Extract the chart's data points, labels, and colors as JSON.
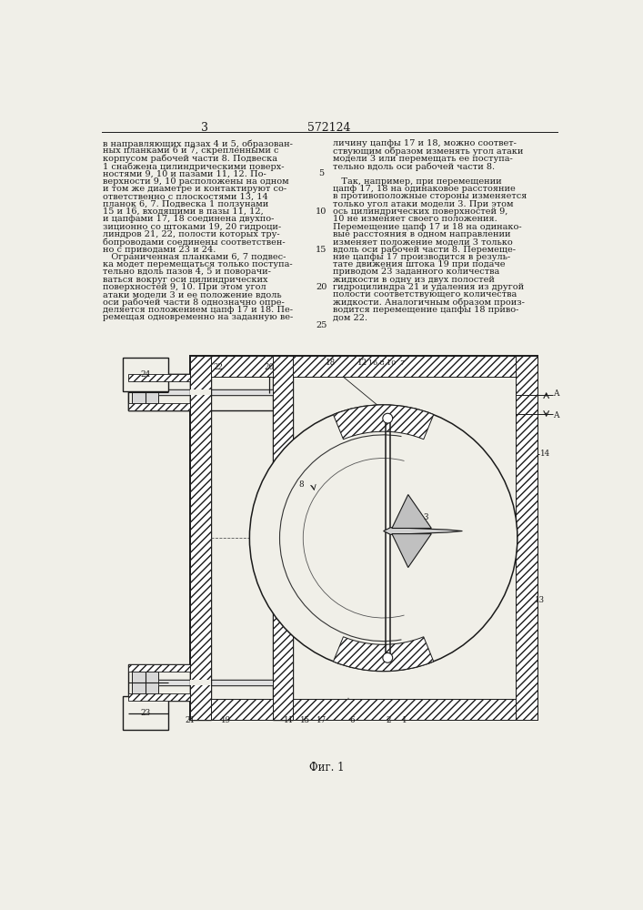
{
  "page_number_left": "3",
  "patent_number": "572124",
  "text_col1": [
    "в направляющих пазах 4 и 5, образован-",
    "ных планками 6 и 7, скрепленными с",
    "корпусом рабочей части 8. Подвеска",
    "1 снабжена цилиндрическими поверх-",
    "ностями 9, 10 и пазами 11, 12. По-",
    "верхности 9, 10 расположены на одном",
    "и том же диаметре и контактируют со-",
    "ответственно с плоскостями 13, 14",
    "планок 6, 7. Подвеска 1 ползунами",
    "15 и 16, входящими в пазы 11, 12,",
    "и цапфами 17, 18 соединена двухпо-",
    "зиционно со штоками 19, 20 гидроци-",
    "линдров 21, 22, полости которых тру-",
    "бопроводами соединены соответствен-",
    "но с приводами 23 и 24.",
    "   Ограниченная планками 6, 7 подвес-",
    "ка модет перемещаться только поступа-",
    "тельно вдоль пазов 4, 5 и поворачи-",
    "ваться вокруг оси цилиндрических",
    "поверхностей 9, 10. При этом угол",
    "атаки модели 3 и ее положение вдоль",
    "оси рабочей части 8 однозначно опре-",
    "деляется положением цапф 17 и 18. Пе-",
    "ремещая одновременно на заданную ве-"
  ],
  "text_col2": [
    "личину цапфы 17 и 18, можно соответ-",
    "ствующим образом изменять угол атаки",
    "модели 3 или перемещать ее поступа-",
    "тельно вдоль оси рабочей части 8.",
    "",
    "   Так, например, при перемещении",
    "цапф 17, 18 на одинаковое расстояние",
    "в противоположные стороны изменяется",
    "только угол атаки модели 3. При этом",
    "ось цилиндрических поверхностей 9,",
    "10 не изменяет своего положения.",
    "Перемещение цапф 17 и 18 на одинако-",
    "вые расстояния в одном направлении",
    "изменяет положение модели 3 только",
    "вдоль оси рабочей части 8. Перемеще-",
    "ние цапфы 17 производится в резуль-",
    "тате движения штока 19 при подаче",
    "приводом 23 заданного количества",
    "жидкости в одну из двух полостей",
    "гидроцилиндра 21 и удаления из другой",
    "полости соответствующего количества",
    "жидкости. Аналогичным образом произ-",
    "водится перемещение цапфы 18 приво-",
    "дом 22."
  ],
  "line_numbers": [
    "5",
    "10",
    "15",
    "20",
    "25"
  ],
  "line_number_rows": [
    4,
    9,
    14,
    19,
    24
  ],
  "figure_caption": "Фиг. 1",
  "bg_color": "#f0efe8",
  "line_color": "#1a1a1a",
  "text_color": "#1a1a1a",
  "font_size_text": 7.0,
  "font_size_header": 9.0,
  "font_size_label": 6.2
}
